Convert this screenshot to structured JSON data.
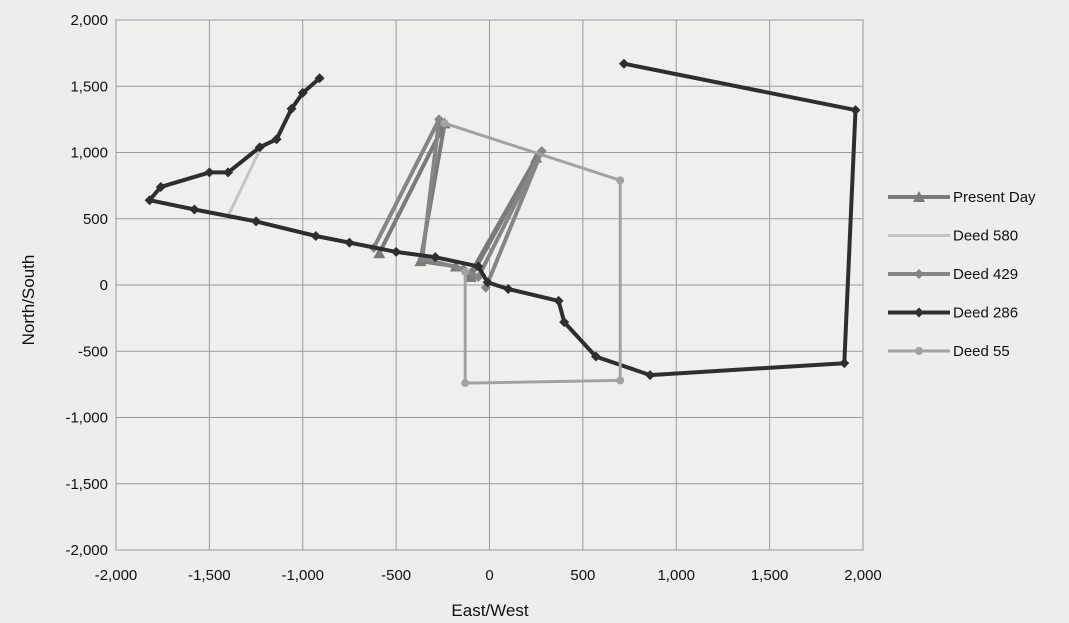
{
  "chart_data": {
    "type": "line",
    "xlabel": "East/West",
    "ylabel": "North/South",
    "xlim": [
      -2000,
      2000
    ],
    "ylim": [
      -2000,
      2000
    ],
    "xticks": [
      -2000,
      -1500,
      -1000,
      -500,
      0,
      500,
      1000,
      1500,
      2000
    ],
    "yticks": [
      -2000,
      -1500,
      -1000,
      -500,
      0,
      500,
      1000,
      1500,
      2000
    ],
    "xtick_labels": [
      "-2,000",
      "-1,500",
      "-1,000",
      "-500",
      "0",
      "500",
      "1,000",
      "1,500",
      "2,000"
    ],
    "ytick_labels": [
      "-2,000",
      "-1,500",
      "-1,000",
      "-500",
      "0",
      "500",
      "1,000",
      "1,500",
      "2,000"
    ],
    "grid": true,
    "legend_position": "right",
    "series": [
      {
        "name": "Present Day",
        "color": "#7a7a7a",
        "marker": "triangle",
        "points": [
          [
            -590,
            240
          ],
          [
            -240,
            1220
          ],
          [
            -370,
            180
          ],
          [
            -180,
            140
          ],
          [
            -100,
            90
          ],
          [
            250,
            960
          ],
          [
            -100,
            60
          ]
        ]
      },
      {
        "name": "Deed 580",
        "color": "#c4c4c4",
        "marker": "none",
        "points": [
          [
            -1400,
            520
          ],
          [
            -1230,
            1020
          ]
        ]
      },
      {
        "name": "Deed 429",
        "color": "#858585",
        "marker": "diamond",
        "points": [
          [
            -620,
            280
          ],
          [
            -270,
            1250
          ],
          [
            -360,
            200
          ],
          [
            -140,
            120
          ],
          [
            -60,
            60
          ],
          [
            280,
            1010
          ],
          [
            -20,
            -20
          ]
        ]
      },
      {
        "name": "Deed 286",
        "color": "#2e2e2e",
        "marker": "diamond",
        "points": [
          [
            -910,
            1560
          ],
          [
            -1000,
            1450
          ],
          [
            -1060,
            1330
          ],
          [
            -1140,
            1100
          ],
          [
            -1230,
            1040
          ],
          [
            -1400,
            850
          ],
          [
            -1500,
            850
          ],
          [
            -1760,
            740
          ],
          [
            -1820,
            640
          ],
          [
            -1580,
            570
          ],
          [
            -1250,
            480
          ],
          [
            -930,
            370
          ],
          [
            -750,
            320
          ],
          [
            -500,
            250
          ],
          [
            -290,
            210
          ],
          [
            -60,
            140
          ],
          [
            -10,
            20
          ],
          [
            100,
            -30
          ],
          [
            370,
            -120
          ],
          [
            400,
            -280
          ],
          [
            570,
            -540
          ],
          [
            860,
            -680
          ],
          [
            1900,
            -590
          ],
          [
            1960,
            1320
          ],
          [
            720,
            1670
          ]
        ]
      },
      {
        "name": "Deed 55",
        "color": "#a2a2a2",
        "marker": "circle",
        "points": [
          [
            -240,
            1220
          ],
          [
            700,
            790
          ],
          [
            700,
            -720
          ],
          [
            -130,
            -740
          ],
          [
            -130,
            100
          ]
        ]
      }
    ]
  }
}
